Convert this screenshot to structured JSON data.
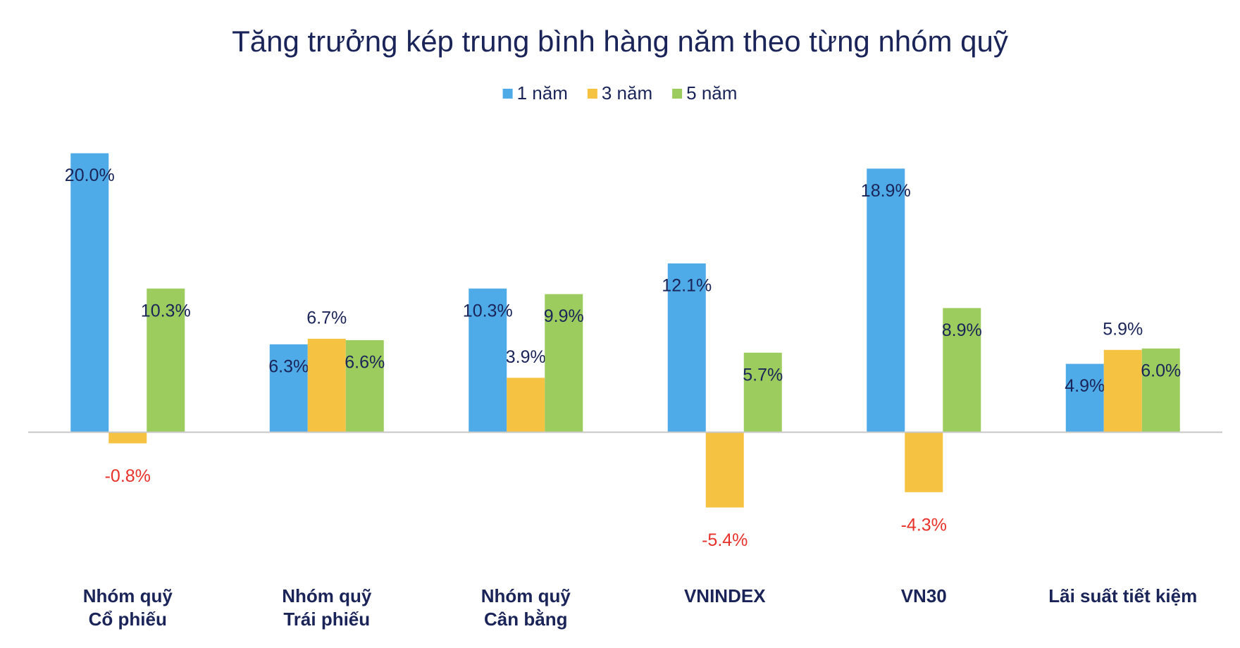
{
  "chart_data": {
    "type": "bar",
    "title": "Tăng trưởng kép trung bình hàng năm theo từng nhóm quỹ",
    "categories": [
      "Nhóm quỹ\nCổ phiếu",
      "Nhóm quỹ\nTrái phiếu",
      "Nhóm quỹ\nCân bằng",
      "VNINDEX",
      "VN30",
      "Lãi suất tiết kiệm"
    ],
    "series": [
      {
        "name": "1 năm",
        "color": "#4fabe8",
        "values": [
          20.0,
          6.3,
          10.3,
          12.1,
          18.9,
          4.9
        ],
        "value_labels": [
          "20.0%",
          "6.3%",
          "10.3%",
          "12.1%",
          "18.9%",
          "4.9%"
        ]
      },
      {
        "name": "3 năm",
        "color": "#f5c242",
        "values": [
          -0.8,
          6.7,
          3.9,
          -5.4,
          -4.3,
          5.9
        ],
        "value_labels": [
          "-0.8%",
          "6.7%",
          "3.9%",
          "-5.4%",
          "-4.3%",
          "5.9%"
        ]
      },
      {
        "name": "5 năm",
        "color": "#9ccc5d",
        "values": [
          10.3,
          6.6,
          9.9,
          5.7,
          8.9,
          6.0
        ],
        "value_labels": [
          "10.3%",
          "6.6%",
          "9.9%",
          "5.7%",
          "8.9%",
          "6.0%"
        ]
      }
    ],
    "ylim": [
      -8,
      22
    ],
    "negative_label_color": "#e8312a",
    "legend": "top"
  }
}
